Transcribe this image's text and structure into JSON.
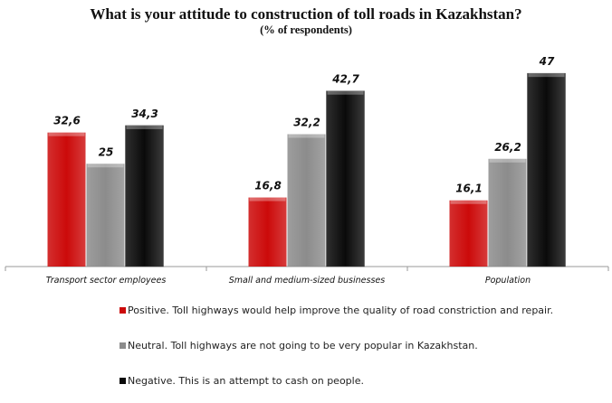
{
  "chart_data": {
    "type": "bar",
    "title": "What is your attitude to construction of toll roads in Kazakhstan?",
    "subtitle": "(% of respondents)",
    "xlabel": "",
    "ylabel": "",
    "ylim": [
      0,
      50
    ],
    "grid": false,
    "legend_position": "bottom",
    "categories": [
      "Transport sector employees",
      "Small and medium-sized businesses",
      "Population"
    ],
    "series": [
      {
        "name": "Positive. Toll highways would help improve the quality of road constriction and repair.",
        "color": "#cc0a0a",
        "values": [
          32.6,
          16.8,
          16.1
        ],
        "labels": [
          "32,6",
          "16,8",
          "16,1"
        ]
      },
      {
        "name": "Neutral. Toll highways are not going to be very popular in Kazakhstan.",
        "color": "#8c8c8c",
        "values": [
          25,
          32.2,
          26.2
        ],
        "labels": [
          "25",
          "32,2",
          "26,2"
        ]
      },
      {
        "name": "Negative. This is an attempt to cash on people.",
        "color": "#0a0a0a",
        "values": [
          34.3,
          42.7,
          47
        ],
        "labels": [
          "34,3",
          "42,7",
          "47"
        ]
      }
    ]
  }
}
